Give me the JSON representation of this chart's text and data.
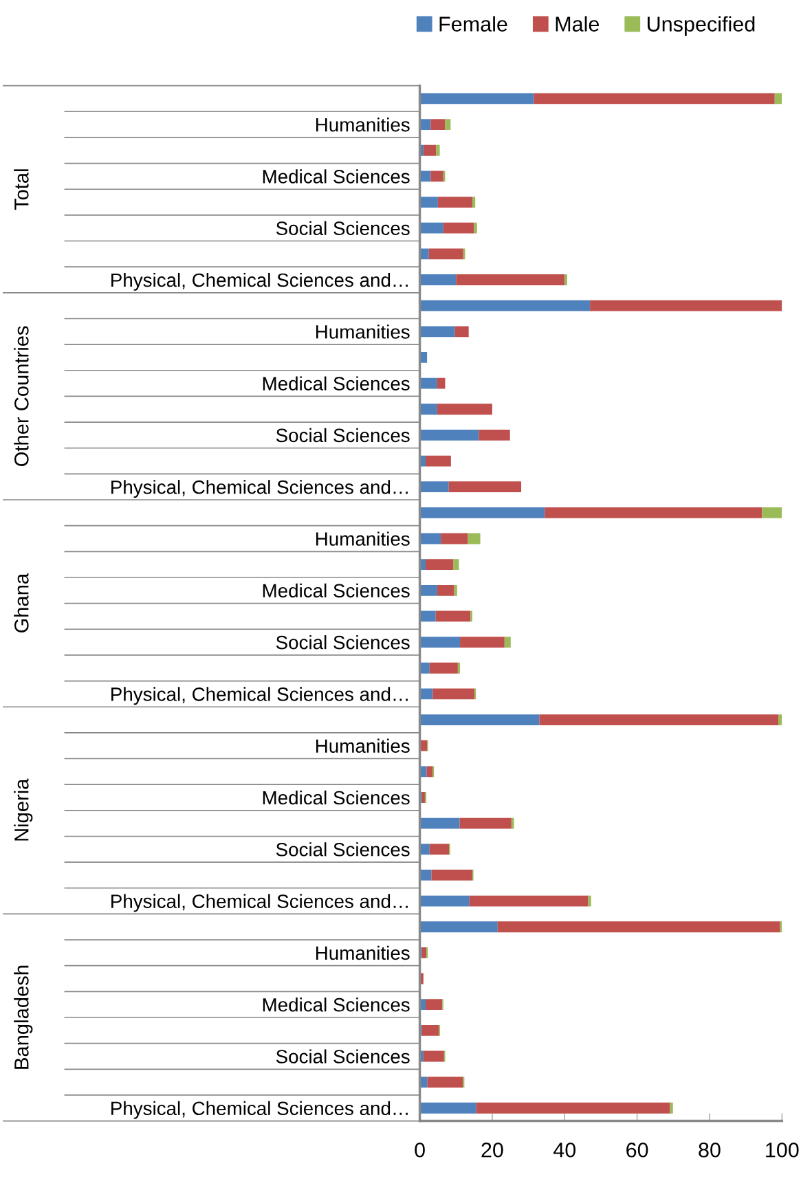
{
  "chart_data": {
    "type": "bar",
    "orientation": "horizontal",
    "stacked": true,
    "categories": [
      null,
      "Humanities",
      null,
      "Medical Sciences",
      null,
      "Social Sciences",
      null,
      "Physical, Chemical Sciences and…",
      null,
      "Humanities",
      null,
      "Medical Sciences",
      null,
      "Social Sciences",
      null,
      "Physical, Chemical Sciences and…",
      null,
      "Humanities",
      null,
      "Medical Sciences",
      null,
      "Social Sciences",
      null,
      "Physical, Chemical Sciences and…",
      null,
      "Humanities",
      null,
      "Medical Sciences",
      null,
      "Social Sciences",
      null,
      "Physical, Chemical Sciences and…",
      null,
      "Humanities",
      null,
      "Medical Sciences",
      null,
      "Social Sciences",
      null,
      "Physical, Chemical Sciences and…"
    ],
    "series": [
      {
        "name": "Female",
        "color": "#4f81bd",
        "values": [
          31.5,
          3,
          1,
          3,
          5,
          6.5,
          2.5,
          10,
          47,
          9.7,
          2,
          4.8,
          4.8,
          16.3,
          1.6,
          8,
          34.5,
          5.8,
          1.6,
          4.8,
          4.4,
          11.1,
          2.7,
          3.6,
          33,
          0,
          1.9,
          0.6,
          11,
          2.7,
          3.2,
          13.7,
          21.5,
          0.6,
          0,
          1.6,
          0.6,
          1,
          2.1,
          15.6
        ]
      },
      {
        "name": "Male",
        "color": "#c0504d",
        "values": [
          66.5,
          4,
          3.5,
          3.5,
          9.5,
          8.5,
          9.5,
          30,
          53,
          3.8,
          0,
          2.2,
          15.2,
          8.6,
          7,
          20,
          60,
          7.5,
          7.7,
          4.7,
          9.6,
          12.3,
          7.8,
          11.5,
          66,
          2,
          1.7,
          0.8,
          14.3,
          5.4,
          11.3,
          32.8,
          78,
          1.2,
          1,
          4.6,
          4.7,
          5.7,
          9.8,
          53.5
        ]
      },
      {
        "name": "Unspecified",
        "color": "#9bbb59",
        "values": [
          2,
          1.5,
          1,
          0.5,
          0.8,
          0.8,
          0.5,
          0.7,
          0,
          0,
          0,
          0,
          0,
          0,
          0,
          0,
          5.5,
          3.4,
          1.5,
          0.8,
          0.5,
          1.7,
          0.6,
          0.4,
          1,
          0.3,
          0.3,
          0.4,
          0.7,
          0.3,
          0.3,
          0.8,
          0.5,
          0.4,
          0,
          0.3,
          0.3,
          0.3,
          0.4,
          0.8
        ]
      }
    ],
    "xlim": [
      0,
      100
    ],
    "xticks": [
      0,
      20,
      40,
      60,
      80,
      100
    ],
    "annotations": [
      "Total",
      "Other Countries",
      "Ghana",
      "Nigeria",
      "Bangladesh"
    ],
    "legend": "top",
    "grid": false
  }
}
